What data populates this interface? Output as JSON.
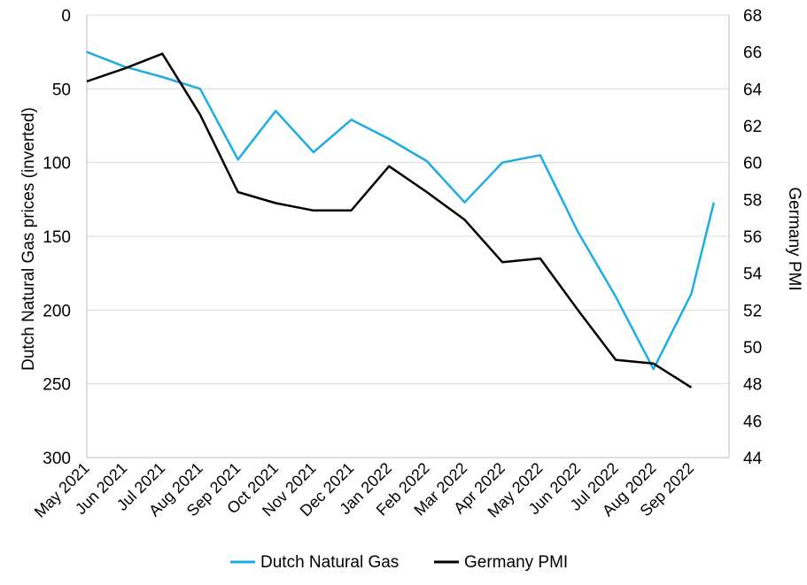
{
  "chart_data": {
    "type": "line",
    "categories": [
      "May 2021",
      "Jun 2021",
      "Jul 2021",
      "Aug 2021",
      "Sep 2021",
      "Oct 2021",
      "Nov 2021",
      "Dec 2021",
      "Jan 2022",
      "Feb 2022",
      "Mar 2022",
      "Apr 2022",
      "May 2022",
      "Jun 2022",
      "Jul 2022",
      "Aug 2022",
      "Sep 2022"
    ],
    "y_left": {
      "label": "Dutch Natural Gas prices (inverted)",
      "range": [
        0,
        300
      ],
      "inverted": true,
      "ticks": [
        "0",
        "50",
        "100",
        "150",
        "200",
        "250",
        "300"
      ]
    },
    "y_right": {
      "label": "Germany PMI",
      "range": [
        44,
        68
      ],
      "ticks": [
        "44",
        "46",
        "48",
        "50",
        "52",
        "54",
        "56",
        "58",
        "60",
        "62",
        "64",
        "66",
        "68"
      ]
    },
    "gridlines": "horizontal",
    "legend": "bottom",
    "series": [
      {
        "name": "Dutch Natural Gas",
        "axis": "left",
        "color": "#1CADE4",
        "x": [
          0,
          1,
          2,
          3,
          4,
          5,
          6,
          7,
          8,
          9,
          10,
          11,
          12,
          13,
          14,
          15,
          16,
          16.6
        ],
        "values": [
          25,
          35,
          42,
          50,
          98,
          65,
          93,
          71,
          84,
          99,
          127,
          100,
          95,
          147,
          191,
          240,
          189,
          127
        ]
      },
      {
        "name": "Germany PMI",
        "axis": "right",
        "color": "#000000",
        "x": [
          0,
          1,
          2,
          3,
          4,
          5,
          6,
          7,
          8,
          9,
          10,
          11,
          12,
          13,
          14,
          15,
          16
        ],
        "values": [
          64.4,
          65.1,
          65.9,
          62.6,
          58.4,
          57.8,
          57.4,
          57.4,
          59.8,
          58.4,
          56.9,
          54.6,
          54.8,
          52.0,
          49.3,
          49.1,
          47.8
        ]
      }
    ]
  }
}
